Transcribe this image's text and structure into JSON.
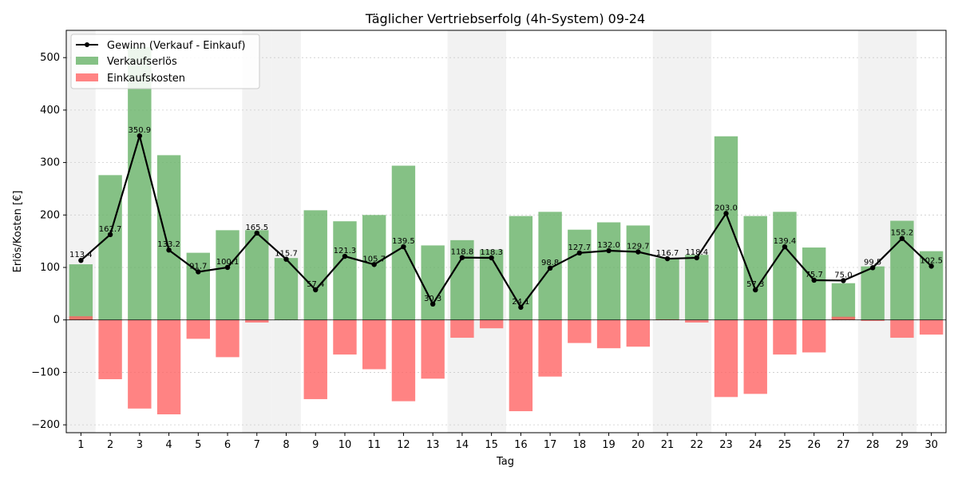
{
  "chart_data": {
    "type": "bar",
    "title": "Täglicher Vertriebserfolg (4h-System) 09-24",
    "xlabel": "Tag",
    "ylabel": "Erlös/Kosten [€]",
    "x": [
      1,
      2,
      3,
      4,
      5,
      6,
      7,
      8,
      9,
      10,
      11,
      12,
      13,
      14,
      15,
      16,
      17,
      18,
      19,
      20,
      21,
      22,
      23,
      24,
      25,
      26,
      27,
      28,
      29,
      30
    ],
    "ylim": [
      -215,
      552
    ],
    "yticks": [
      -200,
      -100,
      0,
      100,
      200,
      300,
      400,
      500
    ],
    "grid": true,
    "legend_position": "top-left",
    "shaded_days": [
      1,
      7,
      8,
      14,
      15,
      21,
      22,
      28,
      29
    ],
    "series": [
      {
        "name": "Gewinn (Verkauf - Einkauf)",
        "kind": "line",
        "color": "#000000",
        "values": [
          113.4,
          162.7,
          350.9,
          133.2,
          91.7,
          100.1,
          165.5,
          115.7,
          57.4,
          121.3,
          105.7,
          139.5,
          30.3,
          118.8,
          118.3,
          24.1,
          98.8,
          127.7,
          132.0,
          129.7,
          116.7,
          118.4,
          203.0,
          57.3,
          139.4,
          75.7,
          75.0,
          99.5,
          155.2,
          102.5
        ]
      },
      {
        "name": "Verkaufserlös",
        "kind": "bar",
        "color": "#66b266",
        "values": [
          106,
          276,
          520,
          314,
          128,
          171,
          171,
          118,
          209,
          188,
          200,
          294,
          142,
          152,
          134,
          198,
          206,
          172,
          186,
          180,
          118,
          124,
          350,
          198,
          206,
          138,
          70,
          102,
          189,
          131
        ]
      },
      {
        "name": "Einkaufskosten",
        "kind": "bar",
        "color": "#ff6464",
        "values": [
          7,
          -113,
          -169,
          -180,
          -36,
          -71,
          -5,
          0,
          -151,
          -66,
          -94,
          -155,
          -112,
          -34,
          -16,
          -174,
          -108,
          -44,
          -54,
          -51,
          1,
          -5,
          -147,
          -141,
          -66,
          -62,
          6,
          -2,
          -34,
          -28
        ]
      }
    ]
  }
}
